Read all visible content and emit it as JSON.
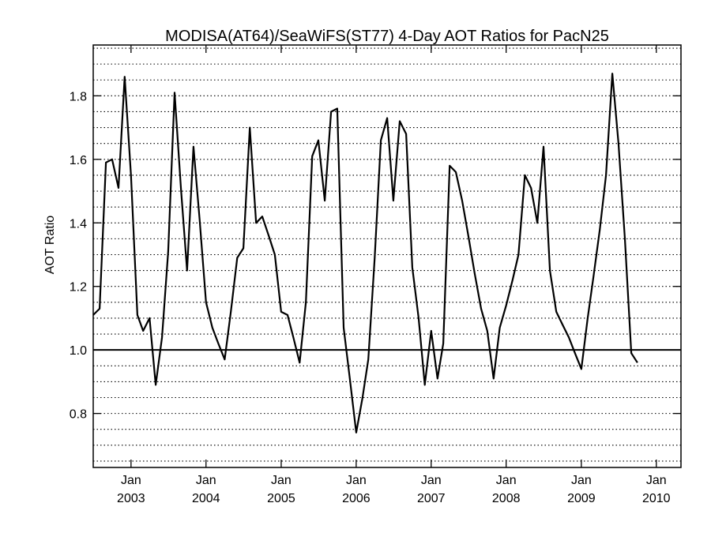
{
  "chart_data": {
    "type": "line",
    "title": "MODISA(AT64)/SeaWiFS(ST77) 4-Day AOT Ratios for PacN25",
    "xlabel": "",
    "ylabel": "AOT Ratio",
    "ylim": [
      0.63,
      1.96
    ],
    "xlim": [
      "2002-07-01",
      "2010-05-01"
    ],
    "y_ticks": [
      "0.8",
      "1.0",
      "1.2",
      "1.4",
      "1.6",
      "1.8"
    ],
    "x_ticks": [
      {
        "month": "Jan",
        "year": "2003",
        "date": "2003-01-01"
      },
      {
        "month": "Jan",
        "year": "2004",
        "date": "2004-01-01"
      },
      {
        "month": "Jan",
        "year": "2005",
        "date": "2005-01-01"
      },
      {
        "month": "Jan",
        "year": "2006",
        "date": "2006-01-01"
      },
      {
        "month": "Jan",
        "year": "2007",
        "date": "2007-01-01"
      },
      {
        "month": "Jan",
        "year": "2008",
        "date": "2008-01-01"
      },
      {
        "month": "Jan",
        "year": "2009",
        "date": "2009-01-01"
      },
      {
        "month": "Jan",
        "year": "2010",
        "date": "2010-01-01"
      }
    ],
    "reference_line": 1.0,
    "grid": "horizontal dotted",
    "series": [
      {
        "points": [
          [
            "2002-07-01",
            1.11
          ],
          [
            "2002-08-01",
            1.13
          ],
          [
            "2002-09-01",
            1.59
          ],
          [
            "2002-10-01",
            1.6
          ],
          [
            "2002-11-01",
            1.51
          ],
          [
            "2002-12-01",
            1.86
          ],
          [
            "2003-01-01",
            1.55
          ],
          [
            "2003-02-01",
            1.11
          ],
          [
            "2003-03-01",
            1.06
          ],
          [
            "2003-04-01",
            1.1
          ],
          [
            "2003-05-01",
            0.89
          ],
          [
            "2003-06-01",
            1.04
          ],
          [
            "2003-07-01",
            1.31
          ],
          [
            "2003-08-01",
            1.81
          ],
          [
            "2003-09-01",
            1.51
          ],
          [
            "2003-10-01",
            1.25
          ],
          [
            "2003-11-01",
            1.64
          ],
          [
            "2003-12-01",
            1.41
          ],
          [
            "2004-01-01",
            1.15
          ],
          [
            "2004-02-01",
            1.07
          ],
          [
            "2004-03-01",
            1.02
          ],
          [
            "2004-04-01",
            0.97
          ],
          [
            "2004-05-01",
            1.12
          ],
          [
            "2004-06-01",
            1.29
          ],
          [
            "2004-07-01",
            1.32
          ],
          [
            "2004-08-01",
            1.7
          ],
          [
            "2004-09-01",
            1.4
          ],
          [
            "2004-10-01",
            1.42
          ],
          [
            "2004-11-01",
            1.36
          ],
          [
            "2004-12-01",
            1.3
          ],
          [
            "2005-01-01",
            1.12
          ],
          [
            "2005-02-01",
            1.11
          ],
          [
            "2005-03-01",
            1.04
          ],
          [
            "2005-04-01",
            0.96
          ],
          [
            "2005-05-01",
            1.15
          ],
          [
            "2005-06-01",
            1.61
          ],
          [
            "2005-07-01",
            1.66
          ],
          [
            "2005-08-01",
            1.47
          ],
          [
            "2005-09-01",
            1.75
          ],
          [
            "2005-10-01",
            1.76
          ],
          [
            "2005-11-01",
            1.07
          ],
          [
            "2005-12-01",
            0.91
          ],
          [
            "2006-01-01",
            0.74
          ],
          [
            "2006-02-01",
            0.85
          ],
          [
            "2006-03-01",
            0.97
          ],
          [
            "2006-04-01",
            1.29
          ],
          [
            "2006-05-01",
            1.66
          ],
          [
            "2006-06-01",
            1.73
          ],
          [
            "2006-07-01",
            1.47
          ],
          [
            "2006-08-01",
            1.72
          ],
          [
            "2006-09-01",
            1.68
          ],
          [
            "2006-10-01",
            1.26
          ],
          [
            "2006-11-01",
            1.1
          ],
          [
            "2006-12-01",
            0.89
          ],
          [
            "2007-01-01",
            1.06
          ],
          [
            "2007-02-01",
            0.91
          ],
          [
            "2007-03-01",
            1.02
          ],
          [
            "2007-04-01",
            1.58
          ],
          [
            "2007-05-01",
            1.56
          ],
          [
            "2007-06-01",
            1.47
          ],
          [
            "2007-07-01",
            1.36
          ],
          [
            "2007-08-01",
            1.24
          ],
          [
            "2007-09-01",
            1.13
          ],
          [
            "2007-10-01",
            1.06
          ],
          [
            "2007-11-01",
            0.91
          ],
          [
            "2007-12-01",
            1.07
          ],
          [
            "2008-01-01",
            1.14
          ],
          [
            "2008-02-01",
            1.22
          ],
          [
            "2008-03-01",
            1.3
          ],
          [
            "2008-04-01",
            1.55
          ],
          [
            "2008-05-01",
            1.51
          ],
          [
            "2008-06-01",
            1.4
          ],
          [
            "2008-07-01",
            1.64
          ],
          [
            "2008-08-01",
            1.25
          ],
          [
            "2008-09-01",
            1.12
          ],
          [
            "2008-10-01",
            1.08
          ],
          [
            "2008-11-01",
            1.04
          ],
          [
            "2008-12-01",
            0.99
          ],
          [
            "2009-01-01",
            0.94
          ],
          [
            "2009-02-01",
            1.1
          ],
          [
            "2009-03-01",
            1.23
          ],
          [
            "2009-04-01",
            1.38
          ],
          [
            "2009-05-01",
            1.55
          ],
          [
            "2009-06-01",
            1.87
          ],
          [
            "2009-07-01",
            1.65
          ],
          [
            "2009-08-01",
            1.35
          ],
          [
            "2009-09-01",
            0.99
          ],
          [
            "2009-10-01",
            0.96
          ]
        ],
        "color": "#000000"
      }
    ]
  }
}
